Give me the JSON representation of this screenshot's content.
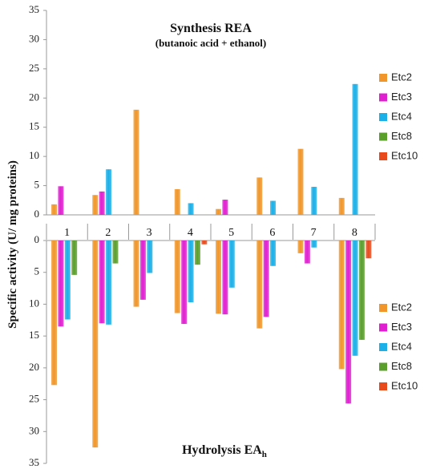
{
  "chart_data": [
    {
      "type": "bar",
      "panel": "top",
      "title": "Synthesis REA",
      "subtitle": "(butanoic acid + ethanol)",
      "ylabel": "Specific activity (U/ mg proteins)",
      "categories": [
        "1",
        "2",
        "3",
        "4",
        "5",
        "6",
        "7",
        "8"
      ],
      "ylim": [
        0,
        35
      ],
      "yticks": [
        "0",
        "5",
        "10",
        "15",
        "20",
        "25",
        "30",
        "35"
      ],
      "legend_position": "right",
      "grid": false,
      "series": [
        {
          "name": "Etc2",
          "color": "#F0962A",
          "values": [
            1.8,
            3.4,
            18.0,
            4.4,
            1.0,
            6.4,
            11.3,
            2.9
          ]
        },
        {
          "name": "Etc3",
          "color": "#E020D0",
          "values": [
            4.9,
            4.0,
            0,
            0,
            2.6,
            0,
            0,
            0
          ]
        },
        {
          "name": "Etc4",
          "color": "#1BB0E8",
          "values": [
            0,
            7.8,
            0,
            2.0,
            0,
            2.4,
            4.8,
            22.4
          ]
        },
        {
          "name": "Etc8",
          "color": "#5A9E2C",
          "values": [
            0,
            0,
            0,
            0,
            0,
            0,
            0,
            0
          ]
        },
        {
          "name": "Etc10",
          "color": "#E84A1C",
          "values": [
            0,
            0,
            0,
            0,
            0,
            0,
            0,
            0
          ]
        }
      ]
    },
    {
      "type": "bar",
      "panel": "bottom",
      "title": "Hydrolysis EA",
      "title_subscript": "h",
      "categories": [
        "1",
        "2",
        "3",
        "4",
        "5",
        "6",
        "7",
        "8"
      ],
      "ylim": [
        0,
        35
      ],
      "yticks": [
        "0",
        "5",
        "10",
        "15",
        "20",
        "25",
        "30",
        "35"
      ],
      "y_direction": "down",
      "legend_position": "right",
      "grid": false,
      "series": [
        {
          "name": "Etc2",
          "color": "#F0962A",
          "values": [
            22.7,
            32.5,
            10.4,
            11.4,
            11.5,
            13.8,
            2.0,
            20.2
          ]
        },
        {
          "name": "Etc3",
          "color": "#E020D0",
          "values": [
            13.5,
            13.0,
            9.3,
            13.1,
            11.6,
            12.0,
            3.6,
            25.6
          ]
        },
        {
          "name": "Etc4",
          "color": "#1BB0E8",
          "values": [
            12.4,
            13.2,
            5.1,
            9.7,
            7.4,
            4.0,
            1.1,
            18.1
          ]
        },
        {
          "name": "Etc8",
          "color": "#5A9E2C",
          "values": [
            5.4,
            3.6,
            0,
            3.8,
            0,
            0,
            0,
            15.6
          ]
        },
        {
          "name": "Etc10",
          "color": "#E84A1C",
          "values": [
            0,
            0,
            0,
            0.6,
            0,
            0,
            0,
            2.8
          ]
        }
      ]
    }
  ]
}
